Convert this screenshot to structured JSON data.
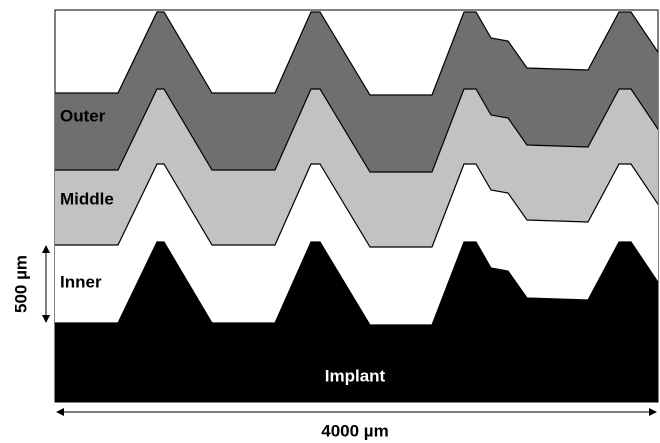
{
  "labels": {
    "outer": "Outer",
    "middle": "Middle",
    "inner": "Inner",
    "implant": "Implant"
  },
  "scale_bars": {
    "vertical": "500 µm",
    "horizontal": "4000 µm"
  }
}
